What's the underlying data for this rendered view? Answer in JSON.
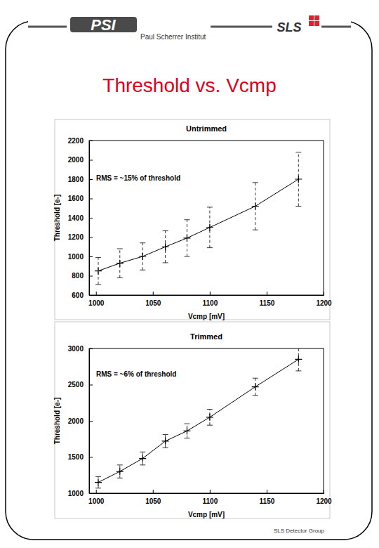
{
  "page": {
    "logo_left": "PSI",
    "institute": "Paul Scherrer Institut",
    "logo_right": "SLS",
    "title": "Threshold vs. Vcmp",
    "footer": "SLS Detector Group"
  },
  "chart_data": [
    {
      "type": "line",
      "title": "Untrimmed",
      "x_label": "Vcmp [mV]",
      "y_label": "Threshold [e-]",
      "annotation": "RMS = ~15% of threshold",
      "x": [
        1002,
        1021,
        1041,
        1061,
        1080,
        1100,
        1140,
        1178
      ],
      "values": [
        850,
        930,
        1000,
        1100,
        1190,
        1300,
        1520,
        1800
      ],
      "errors": [
        140,
        150,
        140,
        165,
        190,
        210,
        245,
        280
      ],
      "color": "#000000",
      "marker": "plus",
      "line_style": "solid",
      "grid": false,
      "xlim": [
        994,
        1200
      ],
      "xticks": [
        1000,
        1050,
        1100,
        1150,
        1200
      ],
      "ylim": [
        600,
        2200
      ],
      "yticks": [
        600,
        800,
        1000,
        1200,
        1400,
        1600,
        1800,
        2000,
        2200
      ]
    },
    {
      "type": "line",
      "title": "Trimmed",
      "x_label": "Vcmp [mV]",
      "y_label": "Threshold [e-]",
      "annotation": "RMS = ~6% of threshold",
      "x": [
        1002,
        1021,
        1041,
        1061,
        1080,
        1100,
        1140,
        1178
      ],
      "values": [
        1150,
        1300,
        1480,
        1720,
        1860,
        2050,
        2470,
        2850
      ],
      "errors": [
        80,
        90,
        90,
        90,
        100,
        110,
        120,
        160
      ],
      "color": "#000000",
      "marker": "plus",
      "line_style": "solid",
      "grid": false,
      "xlim": [
        994,
        1200
      ],
      "xticks": [
        1000,
        1050,
        1100,
        1150,
        1200
      ],
      "ylim": [
        1000,
        3000
      ],
      "yticks": [
        1000,
        1500,
        2000,
        2500,
        3000
      ]
    }
  ]
}
